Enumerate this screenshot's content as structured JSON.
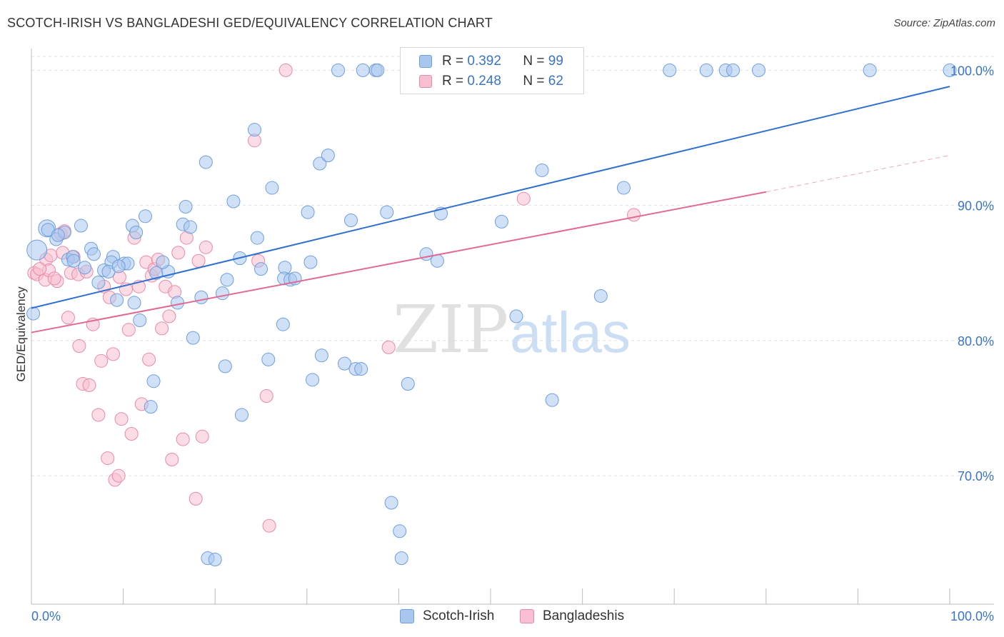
{
  "title": "SCOTCH-IRISH VS BANGLADESHI GED/EQUIVALENCY CORRELATION CHART",
  "source": "Source: ZipAtlas.com",
  "watermark": {
    "zip": "ZIP",
    "atlas": "atlas"
  },
  "legend": {
    "series": [
      {
        "r_label": "R =",
        "r_value": "0.392",
        "n_label": "N =",
        "n_value": "99"
      },
      {
        "r_label": "R =",
        "r_value": "0.248",
        "n_label": "N =",
        "n_value": "62"
      }
    ]
  },
  "bottom_legend": [
    "Scotch-Irish",
    "Bangladeshis"
  ],
  "colors": {
    "blue_fill": "#a9c7ee",
    "blue_stroke": "#6f9fdc",
    "blue_line": "#2f6fcf",
    "pink_fill": "#f7bfd0",
    "pink_stroke": "#e98aa9",
    "pink_line": "#e06a93",
    "tick_label": "#3a74c6",
    "grid": "#e0e0e0"
  },
  "chart_data": {
    "type": "scatter",
    "title": "SCOTCH-IRISH VS BANGLADESHI GED/EQUIVALENCY CORRELATION CHART",
    "xlabel": "",
    "ylabel": "GED/Equivalency",
    "xlim": [
      0,
      100
    ],
    "ylim": [
      60.5,
      101.5
    ],
    "x_tick_labels": [
      "0.0%",
      "100.0%"
    ],
    "y_ticks": [
      70,
      80,
      90,
      100
    ],
    "y_tick_labels": [
      "70.0%",
      "80.0%",
      "90.0%",
      "100.0%"
    ],
    "grid": true,
    "legend_position": "top-center",
    "series": [
      {
        "name": "Scotch-Irish",
        "trend": {
          "x0": 0,
          "y0": 82.4,
          "x1": 100,
          "y1": 98.8
        },
        "points": [
          [
            1.7,
            88.3
          ],
          [
            1.8,
            88.2
          ],
          [
            2.7,
            87.5
          ],
          [
            3.6,
            88.0
          ],
          [
            2.9,
            87.8
          ],
          [
            5.4,
            88.5
          ],
          [
            4.0,
            86.0
          ],
          [
            4.5,
            86.2
          ],
          [
            6.5,
            86.8
          ],
          [
            5.8,
            85.4
          ],
          [
            8.9,
            86.2
          ],
          [
            8.7,
            85.8
          ],
          [
            7.9,
            85.2
          ],
          [
            8.4,
            85.1
          ],
          [
            10.1,
            85.7
          ],
          [
            10.5,
            85.7
          ],
          [
            7.3,
            84.3
          ],
          [
            9.3,
            83.0
          ],
          [
            11.2,
            82.8
          ],
          [
            12.4,
            89.2
          ],
          [
            11.0,
            88.5
          ],
          [
            11.4,
            88.0
          ],
          [
            11.8,
            81.5
          ],
          [
            13.6,
            85.0
          ],
          [
            14.9,
            85.1
          ],
          [
            14.3,
            85.8
          ],
          [
            16.5,
            88.6
          ],
          [
            17.3,
            88.4
          ],
          [
            16.8,
            89.9
          ],
          [
            15.9,
            82.8
          ],
          [
            18.5,
            83.2
          ],
          [
            17.6,
            80.2
          ],
          [
            19.0,
            93.2
          ],
          [
            20.8,
            83.5
          ],
          [
            21.3,
            84.5
          ],
          [
            22.0,
            90.3
          ],
          [
            22.7,
            86.1
          ],
          [
            21.1,
            78.1
          ],
          [
            22.9,
            74.5
          ],
          [
            24.6,
            87.6
          ],
          [
            25.0,
            85.3
          ],
          [
            25.8,
            78.6
          ],
          [
            26.2,
            91.3
          ],
          [
            27.4,
            81.2
          ],
          [
            27.6,
            85.4
          ],
          [
            27.5,
            84.6
          ],
          [
            28.2,
            84.5
          ],
          [
            28.7,
            84.6
          ],
          [
            30.4,
            85.8
          ],
          [
            30.1,
            89.5
          ],
          [
            30.6,
            77.1
          ],
          [
            31.4,
            93.1
          ],
          [
            31.6,
            78.9
          ],
          [
            32.3,
            93.7
          ],
          [
            33.4,
            100.0
          ],
          [
            34.1,
            78.3
          ],
          [
            34.8,
            88.9
          ],
          [
            35.3,
            77.9
          ],
          [
            35.9,
            77.9
          ],
          [
            36.1,
            100.0
          ],
          [
            37.5,
            100.0
          ],
          [
            37.7,
            100.0
          ],
          [
            38.7,
            89.5
          ],
          [
            39.2,
            68.0
          ],
          [
            40.1,
            65.9
          ],
          [
            40.3,
            63.9
          ],
          [
            41.0,
            76.8
          ],
          [
            42.0,
            100.0
          ],
          [
            43.0,
            86.4
          ],
          [
            44.2,
            85.9
          ],
          [
            44.6,
            89.4
          ],
          [
            47.0,
            100.0
          ],
          [
            50.3,
            100.0
          ],
          [
            51.2,
            88.8
          ],
          [
            52.8,
            81.8
          ],
          [
            54.6,
            100.0
          ],
          [
            55.6,
            92.6
          ],
          [
            56.7,
            75.6
          ],
          [
            58.3,
            100.0
          ],
          [
            58.4,
            100.0
          ],
          [
            62.0,
            83.3
          ],
          [
            64.5,
            91.3
          ],
          [
            69.5,
            100.0
          ],
          [
            73.5,
            100.0
          ],
          [
            75.6,
            100.0
          ],
          [
            76.4,
            100.0
          ],
          [
            79.2,
            100.0
          ],
          [
            91.3,
            100.0
          ],
          [
            100.0,
            100.0
          ],
          [
            19.2,
            63.9
          ],
          [
            20.0,
            63.8
          ],
          [
            13.3,
            77.0
          ],
          [
            13.0,
            75.1
          ],
          [
            9.5,
            85.5
          ],
          [
            4.6,
            85.9
          ],
          [
            6.8,
            86.4
          ],
          [
            0.2,
            82.0
          ],
          [
            0.6,
            86.7
          ],
          [
            24.3,
            95.6
          ]
        ],
        "radii": {
          "0.2,82.0": 16,
          "0.6,86.7": 14,
          "1.7,88.3": 12
        }
      },
      {
        "name": "Bangladeshis",
        "trend": {
          "x0": 0,
          "y0": 80.6,
          "x1": 80,
          "y1": 91.0,
          "dash_to_x": 100,
          "dash_to_y": 93.7
        },
        "points": [
          [
            0.3,
            85.0
          ],
          [
            0.6,
            84.9
          ],
          [
            1.5,
            84.5
          ],
          [
            1.6,
            86.0
          ],
          [
            1.9,
            85.2
          ],
          [
            2.1,
            86.3
          ],
          [
            2.8,
            84.4
          ],
          [
            3.2,
            87.9
          ],
          [
            3.4,
            86.5
          ],
          [
            3.6,
            88.1
          ],
          [
            4.0,
            81.7
          ],
          [
            4.3,
            85.0
          ],
          [
            4.6,
            86.2
          ],
          [
            5.1,
            84.9
          ],
          [
            5.2,
            79.6
          ],
          [
            5.6,
            76.8
          ],
          [
            6.0,
            85.1
          ],
          [
            6.3,
            76.7
          ],
          [
            6.7,
            81.2
          ],
          [
            7.3,
            74.5
          ],
          [
            7.6,
            78.5
          ],
          [
            7.9,
            84.0
          ],
          [
            8.3,
            71.3
          ],
          [
            8.5,
            83.2
          ],
          [
            8.9,
            79.0
          ],
          [
            9.1,
            69.7
          ],
          [
            9.5,
            70.0
          ],
          [
            9.6,
            84.7
          ],
          [
            9.8,
            74.2
          ],
          [
            10.3,
            83.8
          ],
          [
            10.6,
            80.8
          ],
          [
            10.9,
            73.1
          ],
          [
            11.2,
            87.6
          ],
          [
            11.7,
            84.0
          ],
          [
            12.0,
            75.3
          ],
          [
            12.5,
            85.8
          ],
          [
            12.8,
            78.6
          ],
          [
            13.1,
            84.8
          ],
          [
            13.4,
            85.3
          ],
          [
            13.8,
            86.0
          ],
          [
            14.2,
            80.9
          ],
          [
            14.6,
            84.0
          ],
          [
            15.0,
            81.8
          ],
          [
            15.3,
            71.2
          ],
          [
            15.6,
            83.6
          ],
          [
            16.0,
            86.5
          ],
          [
            16.5,
            72.7
          ],
          [
            16.9,
            87.6
          ],
          [
            17.9,
            68.3
          ],
          [
            18.2,
            85.9
          ],
          [
            18.6,
            72.9
          ],
          [
            19.0,
            86.9
          ],
          [
            24.3,
            94.8
          ],
          [
            24.7,
            85.9
          ],
          [
            25.6,
            75.9
          ],
          [
            25.9,
            66.3
          ],
          [
            27.7,
            100.0
          ],
          [
            38.9,
            79.5
          ],
          [
            53.6,
            90.5
          ],
          [
            65.6,
            89.3
          ],
          [
            0.9,
            85.3
          ],
          [
            2.5,
            84.6
          ]
        ]
      }
    ]
  }
}
